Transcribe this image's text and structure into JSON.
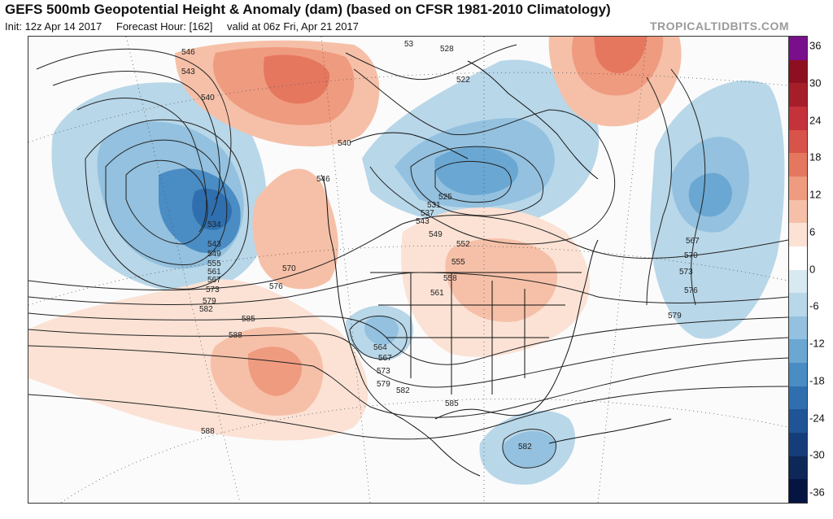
{
  "header": {
    "title": "GEFS 500mb Geopotential Height & Anomaly (dam) (based on CFSR 1981-2010 Climatology)",
    "init": "Init: 12z Apr 14 2017",
    "forecast_hour": "Forecast Hour: [162]",
    "valid": "valid at 06z Fri, Apr 21 2017",
    "brand": "TROPICALTIDBITS.COM"
  },
  "colorbar": {
    "labels": [
      "36",
      "30",
      "24",
      "18",
      "12",
      "6",
      "0",
      "-6",
      "-12",
      "-18",
      "-24",
      "-30",
      "-36"
    ],
    "colors": [
      "#7a0f8c",
      "#8e0f1f",
      "#a51e2a",
      "#c4323a",
      "#d8534a",
      "#e6775f",
      "#ef9b80",
      "#f6c0a8",
      "#fbe2d5",
      "#ffffff",
      "#d8e9f2",
      "#b8d7e9",
      "#93c1df",
      "#6aa7d2",
      "#4a8cc4",
      "#2f6faf",
      "#1f5596",
      "#153d79",
      "#0c2758",
      "#061442"
    ]
  },
  "map": {
    "contour_labels": [
      "546",
      "543",
      "540",
      "528",
      "522",
      "53",
      "540",
      "546",
      "525",
      "531",
      "537",
      "543",
      "549",
      "552",
      "555",
      "558",
      "561",
      "534",
      "543",
      "549",
      "555",
      "561",
      "567",
      "573",
      "579",
      "582",
      "570",
      "576",
      "585",
      "588",
      "564",
      "567",
      "573",
      "579",
      "582",
      "585",
      "588",
      "582",
      "567",
      "570",
      "573",
      "576",
      "579"
    ]
  }
}
